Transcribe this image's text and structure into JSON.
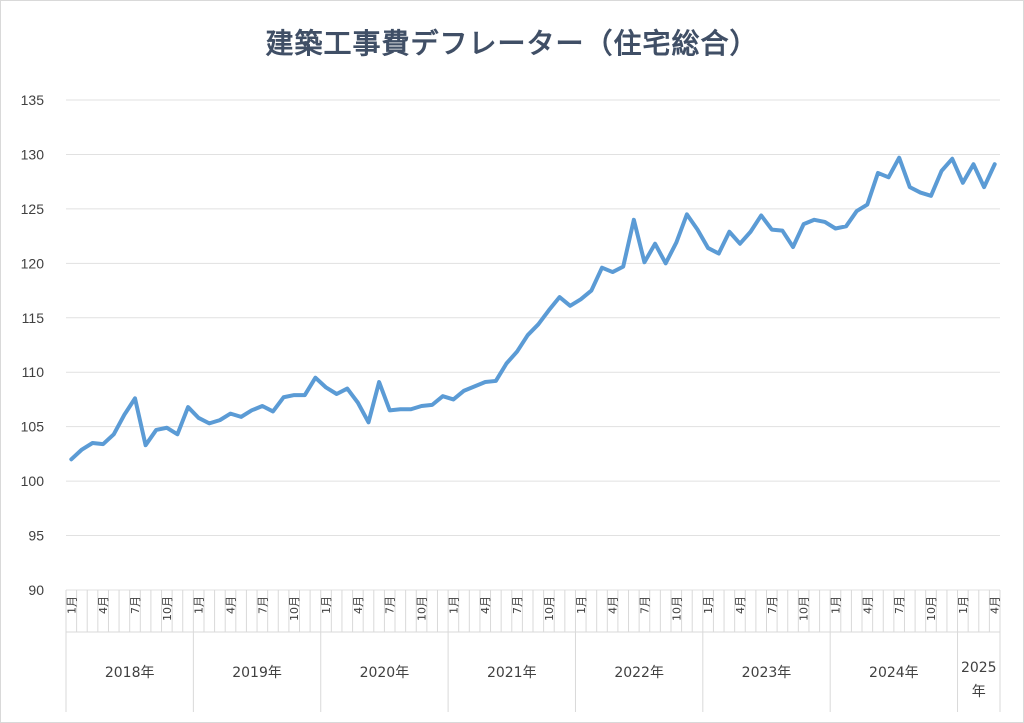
{
  "chart_data": {
    "type": "line",
    "title": "建築工事費デフレーター（住宅総合）",
    "xlabel": "",
    "ylabel": "",
    "ylim": [
      90,
      135
    ],
    "yticks": [
      90,
      95,
      100,
      105,
      110,
      115,
      120,
      125,
      130,
      135
    ],
    "grid": true,
    "legend": "none",
    "line_color": "#5b9bd5",
    "years": [
      "2018年",
      "2019年",
      "2020年",
      "2021年",
      "2022年",
      "2023年",
      "2024年",
      "2025年"
    ],
    "month_tick_labels": [
      "1月",
      "4月",
      "7月",
      "10月"
    ],
    "series": [
      {
        "values": [
          102.0,
          102.9,
          103.5,
          103.4,
          104.3,
          106.1,
          107.6,
          103.3,
          104.7,
          104.9,
          104.3,
          106.8,
          105.8,
          105.3,
          105.6,
          106.2,
          105.9,
          106.5,
          106.9,
          106.4,
          107.7,
          107.9,
          107.9,
          109.5,
          108.6,
          108.0,
          108.5,
          107.2,
          105.4,
          109.1,
          106.5,
          106.6,
          106.6,
          106.9,
          107.0,
          107.8,
          107.5,
          108.3,
          108.7,
          109.1,
          109.2,
          110.8,
          111.9,
          113.4,
          114.4,
          115.7,
          116.9,
          116.1,
          116.7,
          117.5,
          119.6,
          119.2,
          119.7,
          124.0,
          120.1,
          121.8,
          120.0,
          121.9,
          124.5,
          123.1,
          121.4,
          120.9,
          122.9,
          121.8,
          122.9,
          124.4,
          123.1,
          123.0,
          121.5,
          123.6,
          124.0,
          123.8,
          123.2,
          123.4,
          124.8,
          125.4,
          128.3,
          127.9,
          129.7,
          127.0,
          126.5,
          126.2,
          128.5,
          129.6,
          127.4,
          129.1,
          127.0,
          129.1
        ]
      }
    ]
  }
}
